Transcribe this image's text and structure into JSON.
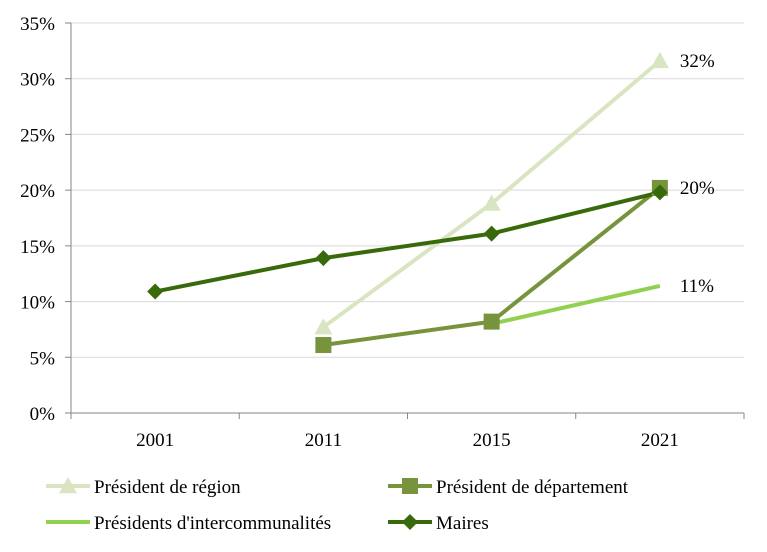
{
  "chart_data": {
    "type": "line",
    "title": "",
    "xlabel": "",
    "ylabel": "",
    "categories": [
      "2001",
      "2011",
      "2015",
      "2021"
    ],
    "ylim": [
      0,
      35
    ],
    "yticks": [
      0,
      5,
      10,
      15,
      20,
      25,
      30,
      35
    ],
    "ytick_labels": [
      "0%",
      "5%",
      "10%",
      "15%",
      "20%",
      "25%",
      "30%",
      "35%"
    ],
    "grid": "horizontal",
    "legend_position": "bottom",
    "series": [
      {
        "name": "Président de région",
        "color": "#d9e5c1",
        "marker": "triangle",
        "values": [
          null,
          7.7,
          18.8,
          31.6
        ]
      },
      {
        "name": "Président de département",
        "color": "#77933c",
        "marker": "square",
        "values": [
          null,
          6.1,
          8.2,
          20.2
        ]
      },
      {
        "name": "Présidents d'intercommunalités",
        "color": "#92d050",
        "marker": "none",
        "values": [
          null,
          null,
          8.0,
          11.4
        ]
      },
      {
        "name": "Maires",
        "color": "#386a0b",
        "marker": "diamond",
        "values": [
          10.9,
          13.9,
          16.1,
          19.8
        ]
      }
    ],
    "annotations": [
      {
        "text": "32%",
        "series": "Président de région",
        "category": "2021"
      },
      {
        "text": "20%",
        "series": "Président de département",
        "category": "2021"
      },
      {
        "text": "11%",
        "series": "Présidents d'intercommunalités",
        "category": "2021"
      }
    ]
  },
  "colors": {
    "gridline": "#d9d9d9",
    "axis": "#868686"
  }
}
